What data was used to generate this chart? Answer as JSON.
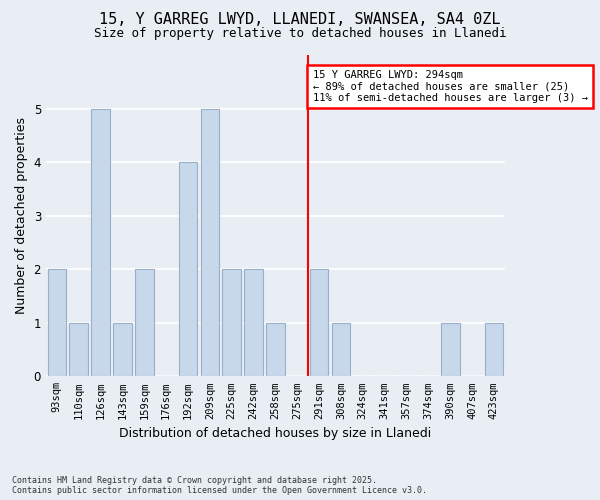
{
  "title": "15, Y GARREG LWYD, LLANEDI, SWANSEA, SA4 0ZL",
  "subtitle": "Size of property relative to detached houses in Llanedi",
  "xlabel": "Distribution of detached houses by size in Llanedi",
  "ylabel": "Number of detached properties",
  "categories": [
    "93sqm",
    "110sqm",
    "126sqm",
    "143sqm",
    "159sqm",
    "176sqm",
    "192sqm",
    "209sqm",
    "225sqm",
    "242sqm",
    "258sqm",
    "275sqm",
    "291sqm",
    "308sqm",
    "324sqm",
    "341sqm",
    "357sqm",
    "374sqm",
    "390sqm",
    "407sqm",
    "423sqm"
  ],
  "values": [
    2,
    1,
    5,
    1,
    2,
    0,
    4,
    5,
    2,
    2,
    1,
    0,
    2,
    1,
    0,
    0,
    0,
    0,
    1,
    0,
    1
  ],
  "bar_color": "#c8d8eb",
  "bar_edgecolor": "#9ab0c8",
  "ylim": [
    0,
    6
  ],
  "yticks": [
    0,
    1,
    2,
    3,
    4,
    5
  ],
  "red_line_index": 12,
  "annotation_title": "15 Y GARREG LWYD: 294sqm",
  "annotation_line1": "← 89% of detached houses are smaller (25)",
  "annotation_line2": "11% of semi-detached houses are larger (3) →",
  "footer_line1": "Contains HM Land Registry data © Crown copyright and database right 2025.",
  "footer_line2": "Contains public sector information licensed under the Open Government Licence v3.0.",
  "background_color": "#e8eef4"
}
